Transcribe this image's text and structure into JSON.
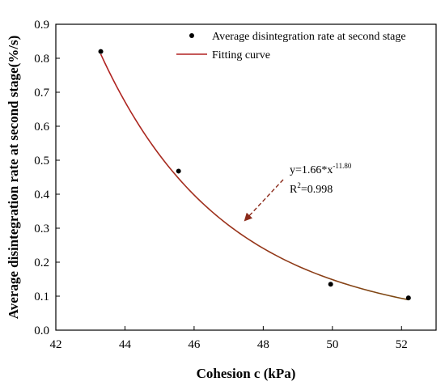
{
  "chart_data": {
    "type": "scatter",
    "xlabel": "Cohesion  c (kPa)",
    "ylabel": "Average disintegration rate at second stage(%/s)",
    "xlim": [
      42,
      53
    ],
    "ylim": [
      0,
      0.9
    ],
    "x_ticks": [
      "42",
      "44",
      "46",
      "48",
      "50",
      "52"
    ],
    "y_ticks": [
      "0.0",
      "0.1",
      "0.2",
      "0.3",
      "0.4",
      "0.5",
      "0.6",
      "0.7",
      "0.8",
      "0.9"
    ],
    "series": [
      {
        "name": "Average disintegration rate at second stage",
        "kind": "scatter",
        "color": "#000000",
        "x": [
          43.3,
          45.55,
          49.95,
          52.2
        ],
        "y": [
          0.82,
          0.468,
          0.135,
          0.095
        ]
      },
      {
        "name": "Fitting curve",
        "kind": "line",
        "color": "#b22222",
        "color_end": "#7a4a12",
        "x_range": [
          43.3,
          52.2
        ]
      }
    ],
    "fit": {
      "coefficient": 1.66,
      "exponent": -11.8,
      "equation_base": "y=1.66*x",
      "equation_exponent": "-11.80",
      "r2_base": "R",
      "r2_sup": "2",
      "r2_value": "=0.998"
    },
    "legend_position": "top-right",
    "grid": false
  }
}
